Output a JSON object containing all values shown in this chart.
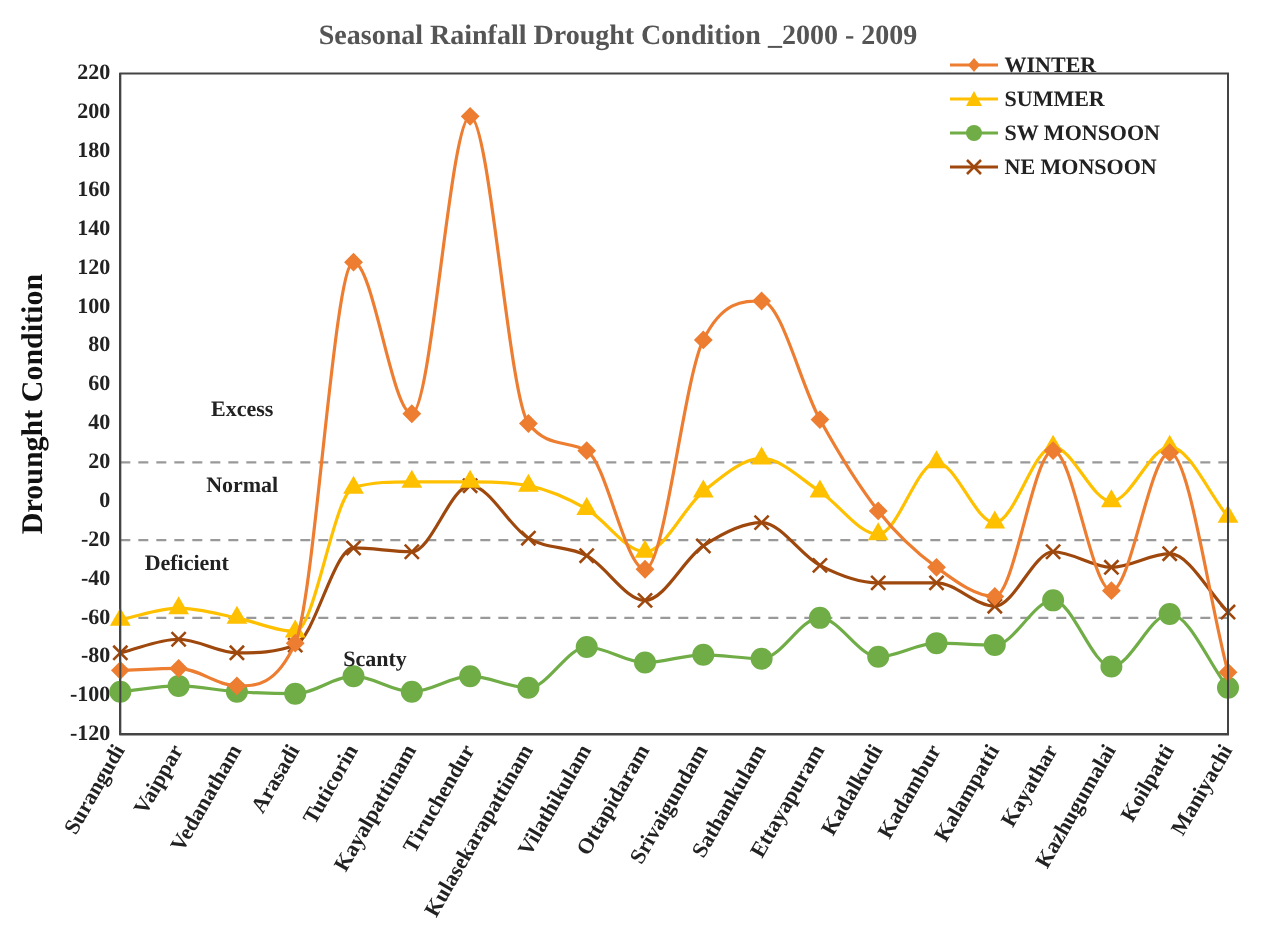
{
  "chart_data": {
    "type": "line",
    "title": "Seasonal Rainfall Drought Condition _2000 - 2009",
    "ylabel": "Drounght Condition",
    "categories": [
      "Surangudi",
      "Vaippar",
      "Vedanatham",
      "Arasadi",
      "Tuticorin",
      "Kayalpattinam",
      "Tiruchendur",
      "Kulasekarapattinam",
      "Vilathikulam",
      "Ottapidaram",
      "Srivaigundam",
      "Sathankulam",
      "Ettayapuram",
      "Kadalkudi",
      "Kadambur",
      "Kalampatti",
      "Kayathar",
      "Kazhugumalai",
      "Koilpatti",
      "Maniyachi"
    ],
    "series": [
      {
        "name": "WINTER",
        "color": "#ed7d31",
        "marker": "diamond",
        "values": [
          -87,
          -86,
          -95,
          -73,
          123,
          45,
          198,
          40,
          26,
          -35,
          83,
          103,
          42,
          -5,
          -34,
          -49,
          26,
          -46,
          25,
          -88
        ]
      },
      {
        "name": "SUMMER",
        "color": "#ffc000",
        "marker": "triangle",
        "values": [
          -61,
          -55,
          -60,
          -67,
          7,
          10,
          10,
          8,
          -4,
          -26,
          5,
          22,
          5,
          -17,
          20,
          -11,
          28,
          0,
          28,
          -8
        ]
      },
      {
        "name": "SW MONSOON",
        "color": "#70ad47",
        "marker": "circle",
        "values": [
          -98,
          -95,
          -98,
          -99,
          -90,
          -98,
          -90,
          -96,
          -75,
          -83,
          -79,
          -81,
          -60,
          -80,
          -73,
          -74,
          -51,
          -85,
          -58,
          -96
        ]
      },
      {
        "name": "NE MONSOON",
        "color": "#9e480e",
        "marker": "cross",
        "values": [
          -78,
          -71,
          -78,
          -74,
          -24,
          -26,
          8,
          -19,
          -28,
          -51,
          -23,
          -11,
          -33,
          -42,
          -42,
          -54,
          -26,
          -34,
          -27,
          -57
        ]
      }
    ],
    "ylim": [
      -120,
      220
    ],
    "yticks": [
      -120,
      -100,
      -80,
      -60,
      -40,
      -20,
      0,
      20,
      40,
      60,
      80,
      100,
      120,
      140,
      160,
      180,
      200,
      220
    ],
    "ref_lines": [
      {
        "axis": "y",
        "value": 20,
        "color": "#999999",
        "line_style": "dashed"
      },
      {
        "axis": "y",
        "value": -20,
        "color": "#999999",
        "line_style": "dashed"
      },
      {
        "axis": "y",
        "value": -60,
        "color": "#999999",
        "line_style": "dashed"
      }
    ],
    "annotations": [
      "Excess",
      "Normal",
      "Deficient",
      "Scanty"
    ],
    "grid": false,
    "legend": "top right"
  }
}
